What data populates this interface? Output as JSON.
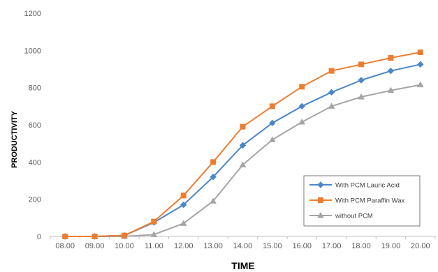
{
  "chart_data": {
    "type": "line",
    "title": "",
    "xlabel": "TIME",
    "ylabel": "PRODUCTIVITY",
    "ylim": [
      0,
      1200
    ],
    "yticks": [
      0,
      200,
      400,
      600,
      800,
      1000,
      1200
    ],
    "categories": [
      "08.00",
      "09.00",
      "10.00",
      "11.00",
      "12.00",
      "13.00",
      "14.00",
      "15.00",
      "16.00",
      "17.00",
      "18.00",
      "19.00",
      "20.00"
    ],
    "grid": false,
    "legend_position": "bottom-right",
    "series": [
      {
        "name": "With PCM Lauric Acid",
        "color": "#4a86c8",
        "marker": "diamond",
        "values": [
          0,
          0,
          5,
          75,
          170,
          320,
          490,
          610,
          700,
          775,
          840,
          890,
          925
        ]
      },
      {
        "name": "With PCM Paraffin Wax",
        "color": "#ed7d31",
        "marker": "square",
        "values": [
          0,
          0,
          5,
          80,
          220,
          400,
          590,
          700,
          805,
          890,
          925,
          960,
          990
        ]
      },
      {
        "name": "without PCM",
        "color": "#a5a5a5",
        "marker": "triangle",
        "values": [
          0,
          0,
          0,
          10,
          70,
          190,
          385,
          520,
          615,
          700,
          750,
          785,
          815
        ]
      }
    ]
  }
}
